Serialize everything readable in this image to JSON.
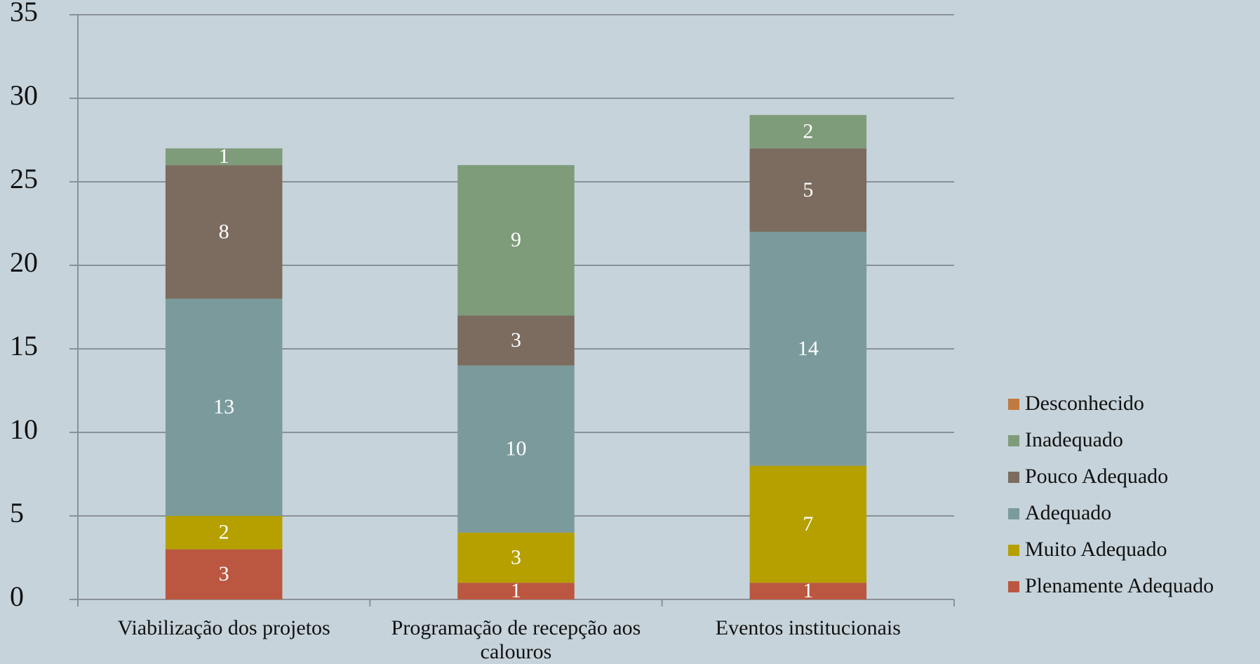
{
  "chart_data": {
    "type": "stacked_bar",
    "categories": [
      "Viabilização dos projetos",
      "Programação de recepção aos calouros",
      "Eventos institucionais"
    ],
    "series": [
      {
        "name": "Plenamente Adequado",
        "color": "#bb5740",
        "values": [
          3,
          1,
          1
        ]
      },
      {
        "name": "Muito Adequado",
        "color": "#b5a000",
        "values": [
          2,
          3,
          7
        ]
      },
      {
        "name": "Adequado",
        "color": "#7b9a9b",
        "values": [
          13,
          10,
          14
        ]
      },
      {
        "name": "Pouco Adequado",
        "color": "#7b6c5f",
        "values": [
          8,
          3,
          5
        ]
      },
      {
        "name": "Inadequado",
        "color": "#7f9c7a",
        "values": [
          1,
          9,
          2
        ]
      },
      {
        "name": "Desconhecido",
        "color": "#c0793f",
        "values": [
          0,
          0,
          0
        ]
      }
    ],
    "ylim": [
      0,
      35
    ],
    "yticks": [
      0,
      5,
      10,
      15,
      20,
      25,
      30,
      35
    ],
    "grid": true,
    "legend": "right"
  }
}
